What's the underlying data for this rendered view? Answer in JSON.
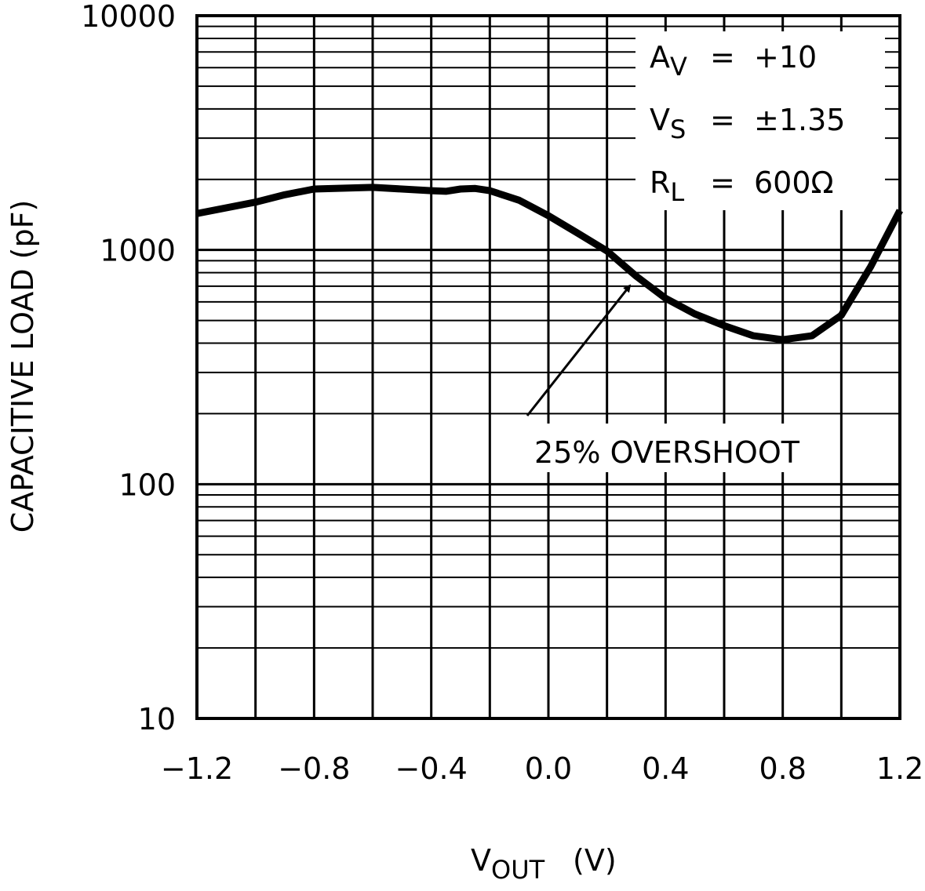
{
  "chart_data": {
    "type": "line",
    "ylabel": "CAPACITIVE LOAD (pF)",
    "xlabel": {
      "symbol": "V",
      "subscript": "OUT",
      "unit": "(V)"
    },
    "x": [
      -1.2,
      -1.0,
      -0.9,
      -0.8,
      -0.6,
      -0.5,
      -0.4,
      -0.35,
      -0.3,
      -0.25,
      -0.2,
      -0.1,
      0.0,
      0.1,
      0.2,
      0.3,
      0.4,
      0.5,
      0.6,
      0.7,
      0.8,
      0.9,
      1.0,
      1.1,
      1.2
    ],
    "values": [
      1430,
      1600,
      1720,
      1820,
      1850,
      1820,
      1790,
      1780,
      1820,
      1830,
      1790,
      1630,
      1400,
      1180,
      990,
      772,
      622,
      533,
      475,
      430,
      414,
      430,
      526,
      848,
      1475
    ],
    "color": "#000000",
    "xlim": [
      -1.2,
      1.2
    ],
    "xticks": [
      {
        "value": -1.2,
        "label": "−1.2"
      },
      {
        "value": -0.8,
        "label": "−0.8"
      },
      {
        "value": -0.4,
        "label": "−0.4"
      },
      {
        "value": 0,
        "label": "0.0"
      },
      0.4,
      0.8,
      1.2
    ],
    "xminorticks": [
      -1.0,
      -0.6,
      -0.2,
      0.2,
      0.6,
      1.0
    ],
    "ylim": [
      10,
      10000
    ],
    "log_y": true,
    "grid": true,
    "yticks": [
      10,
      100,
      1000,
      10000
    ],
    "yminorticks": [
      20,
      30,
      40,
      50,
      60,
      70,
      80,
      90,
      200,
      300,
      400,
      500,
      600,
      700,
      800,
      900,
      2000,
      3000,
      4000,
      5000,
      6000,
      7000,
      8000,
      9000
    ],
    "conditions": [
      {
        "symbol": "A",
        "subscript": "V",
        "value": "=  +10"
      },
      {
        "symbol": "V",
        "subscript": "S",
        "value": "=  ±1.35"
      },
      {
        "symbol": "R",
        "subscript": "L",
        "value": "=  600Ω"
      }
    ],
    "annotation": "25% OVERSHOOT"
  }
}
